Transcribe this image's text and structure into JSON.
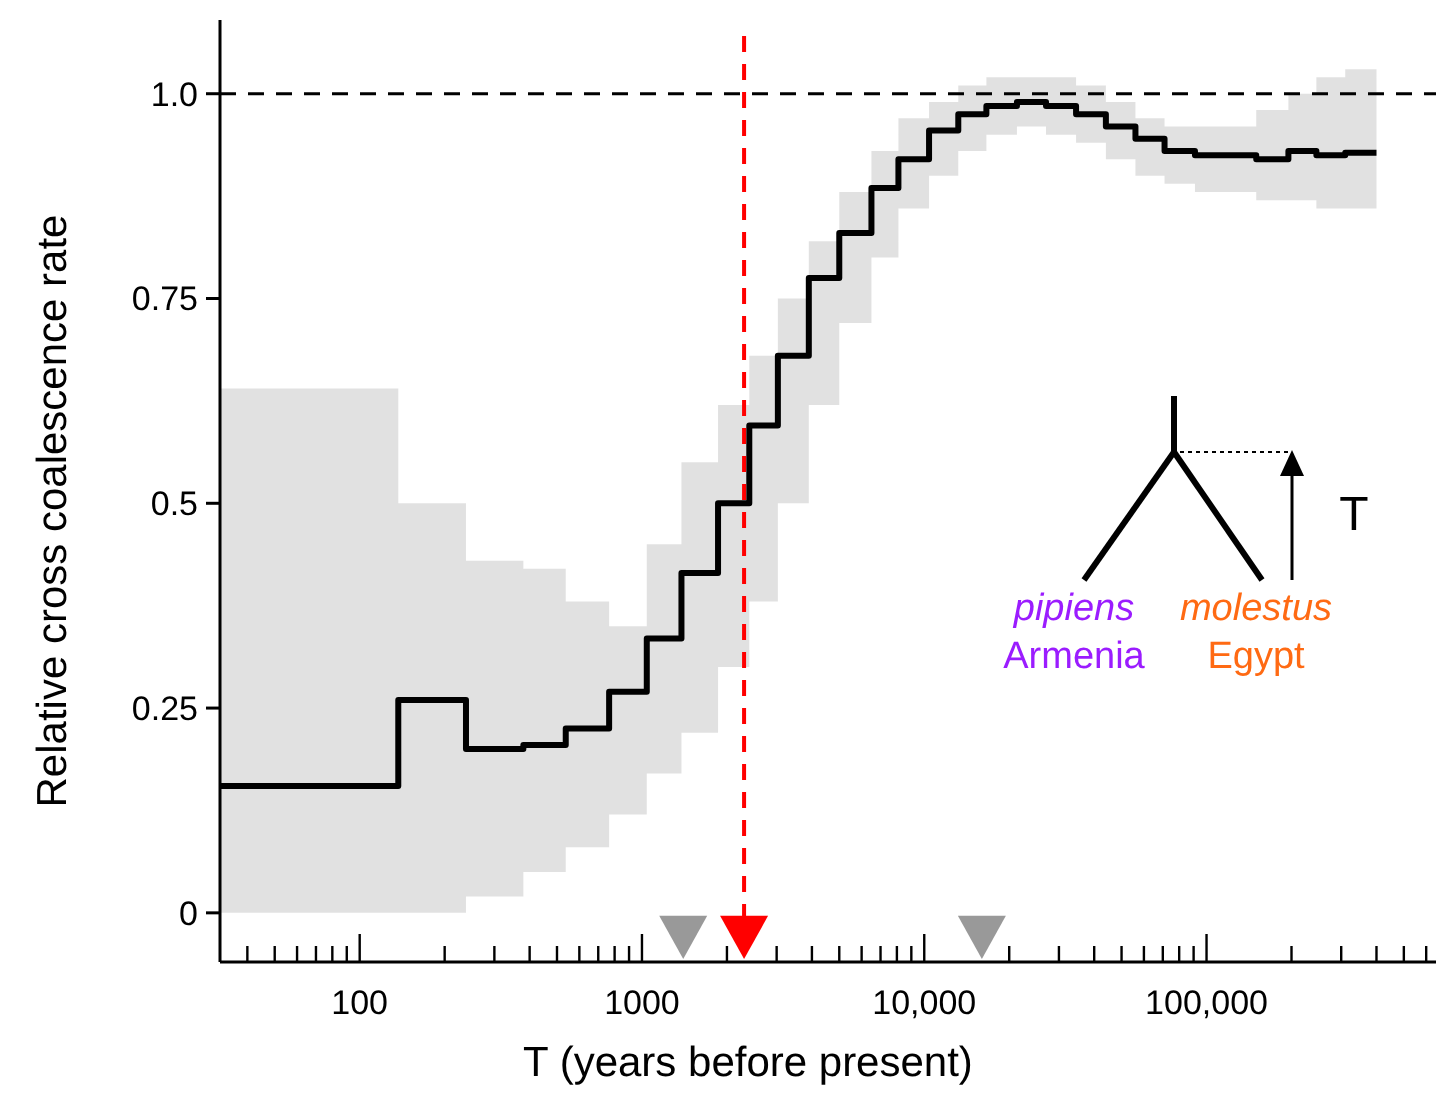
{
  "chart_data": {
    "type": "step",
    "xlabel": "T (years before present)",
    "ylabel": "Relative cross coalescence rate",
    "log": "x",
    "grid": false,
    "xlim": [
      32,
      650000
    ],
    "ylim": [
      -0.06,
      1.09
    ],
    "xticks": [
      {
        "value": 40,
        "label": null
      },
      {
        "value": 50,
        "label": null
      },
      {
        "value": 60,
        "label": null
      },
      {
        "value": 70,
        "label": null
      },
      {
        "value": 80,
        "label": null
      },
      {
        "value": 90,
        "label": null
      },
      100,
      {
        "value": 200,
        "label": null
      },
      {
        "value": 300,
        "label": null
      },
      {
        "value": 400,
        "label": null
      },
      {
        "value": 500,
        "label": null
      },
      {
        "value": 600,
        "label": null
      },
      {
        "value": 700,
        "label": null
      },
      {
        "value": 800,
        "label": null
      },
      {
        "value": 900,
        "label": null
      },
      1000,
      {
        "value": 2000,
        "label": null
      },
      {
        "value": 3000,
        "label": null
      },
      {
        "value": 4000,
        "label": null
      },
      {
        "value": 5000,
        "label": null
      },
      {
        "value": 6000,
        "label": null
      },
      {
        "value": 7000,
        "label": null
      },
      {
        "value": 8000,
        "label": null
      },
      {
        "value": 9000,
        "label": null
      },
      {
        "value": 10000,
        "label": "10,000"
      },
      {
        "value": 20000,
        "label": null
      },
      {
        "value": 30000,
        "label": null
      },
      {
        "value": 40000,
        "label": null
      },
      {
        "value": 50000,
        "label": null
      },
      {
        "value": 60000,
        "label": null
      },
      {
        "value": 70000,
        "label": null
      },
      {
        "value": 80000,
        "label": null
      },
      {
        "value": 90000,
        "label": null
      },
      {
        "value": 100000,
        "label": "100,000"
      },
      {
        "value": 200000,
        "label": null
      },
      {
        "value": 300000,
        "label": null
      },
      {
        "value": 400000,
        "label": null
      },
      {
        "value": 500000,
        "label": null
      },
      {
        "value": 600000,
        "label": null
      }
    ],
    "yticks": [
      0,
      0.25,
      0.5,
      0.75,
      {
        "value": 1,
        "label": "1.0"
      }
    ],
    "ref_lines": [
      {
        "axis": "y",
        "value": 1,
        "color": "#000000",
        "line_style": "dashed"
      },
      {
        "axis": "x",
        "value": 2300,
        "color": "#ff0000",
        "line_style": "dashed"
      }
    ],
    "series": [
      {
        "color": "#000000",
        "x": [
          32,
          137,
          238,
          380,
          537,
          765,
          1040,
          1380,
          1860,
          2400,
          3030,
          3900,
          5000,
          6500,
          8100,
          10400,
          13200,
          16600,
          21300,
          27000,
          34500,
          44000,
          56000,
          71000,
          91000,
          150000,
          195000,
          245000,
          310000,
          400000
        ],
        "values": [
          0.155,
          0.26,
          0.2,
          0.205,
          0.225,
          0.27,
          0.335,
          0.415,
          0.5,
          0.595,
          0.68,
          0.775,
          0.83,
          0.885,
          0.92,
          0.955,
          0.975,
          0.985,
          0.99,
          0.985,
          0.975,
          0.96,
          0.945,
          0.93,
          0.925,
          0.92,
          0.93,
          0.925,
          0.928,
          0.928
        ],
        "lower": [
          0,
          0,
          0.02,
          0.05,
          0.08,
          0.12,
          0.17,
          0.22,
          0.3,
          0.38,
          0.5,
          0.62,
          0.72,
          0.8,
          0.86,
          0.9,
          0.93,
          0.95,
          0.96,
          0.95,
          0.94,
          0.92,
          0.9,
          0.89,
          0.88,
          0.87,
          0.87,
          0.86,
          0.86,
          0.86
        ],
        "upper": [
          0.64,
          0.5,
          0.43,
          0.42,
          0.38,
          0.35,
          0.45,
          0.55,
          0.62,
          0.68,
          0.75,
          0.82,
          0.88,
          0.93,
          0.97,
          0.99,
          1.01,
          1.02,
          1.02,
          1.02,
          1.01,
          0.99,
          0.97,
          0.96,
          0.96,
          0.98,
          1.0,
          1.02,
          1.03,
          1.03
        ]
      },
      {
        "type": "scatter",
        "color": "#999999",
        "marker": "triangle",
        "x": [
          1400,
          16000
        ],
        "values": [
          -0.03,
          -0.03
        ]
      },
      {
        "type": "scatter",
        "color": "#ff0000",
        "marker": "triangle",
        "x": [
          2300
        ],
        "values": [
          -0.03
        ]
      }
    ],
    "annotations": [
      "pipiens",
      "Armenia",
      "molestus",
      "Egypt",
      "T"
    ]
  }
}
